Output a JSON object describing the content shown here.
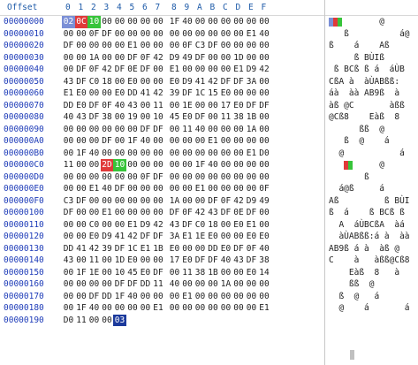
{
  "header": {
    "offset_label": "Offset",
    "columns": [
      "0",
      "1",
      "2",
      "3",
      "4",
      "5",
      "6",
      "7",
      "8",
      "9",
      "A",
      "B",
      "C",
      "D",
      "E",
      "F"
    ]
  },
  "colors": {
    "offset_text": "#1d3bb8",
    "header_text": "#1d5aa8",
    "sel1": "#7b8fd6",
    "sel2": "#e03a3a",
    "sel3": "#37c43a",
    "cursor": "#1c3a9c"
  },
  "rows": [
    {
      "offset": "00000000",
      "bytes": [
        "02",
        "0C",
        "10",
        "00",
        "00",
        "00",
        "00",
        "00",
        "1F",
        "40",
        "00",
        "00",
        "00",
        "00",
        "00",
        "00"
      ],
      "ascii": "          @    "
    },
    {
      "offset": "00000010",
      "bytes": [
        "00",
        "00",
        "0F",
        "DF",
        "00",
        "00",
        "00",
        "00",
        "00",
        "00",
        "00",
        "00",
        "00",
        "00",
        "E1",
        "40"
      ],
      "ascii": "   ß          á@"
    },
    {
      "offset": "00000020",
      "bytes": [
        "DF",
        "00",
        "00",
        "00",
        "00",
        "E1",
        "00",
        "00",
        "00",
        "0F",
        "C3",
        "DF",
        "00",
        "00",
        "00",
        "00"
      ],
      "ascii": "ß    á    Aß    "
    },
    {
      "offset": "00000030",
      "bytes": [
        "00",
        "00",
        "1A",
        "00",
        "00",
        "DF",
        "0F",
        "42",
        "D9",
        "49",
        "DF",
        "00",
        "00",
        "1D",
        "00",
        "00"
      ],
      "ascii": "     ß BÙIß      "
    },
    {
      "offset": "00000040",
      "bytes": [
        "00",
        "DF",
        "0F",
        "42",
        "DF",
        "0E",
        "DF",
        "00",
        "E1",
        "00",
        "00",
        "00",
        "00",
        "E1",
        "D9",
        "42"
      ],
      "ascii": " ß BCß ß á  áÙB"
    },
    {
      "offset": "00000050",
      "bytes": [
        "43",
        "DF",
        "C0",
        "18",
        "00",
        "E0",
        "00",
        "00",
        "E0",
        "D9",
        "41",
        "42",
        "DF",
        "DF",
        "3A",
        "00"
      ],
      "ascii": "CßA à  àÙABßß:"
    },
    {
      "offset": "00000060",
      "bytes": [
        "E1",
        "E0",
        "00",
        "00",
        "E0",
        "DD",
        "41",
        "42",
        "39",
        "DF",
        "1C",
        "15",
        "E0",
        "00",
        "00",
        "00"
      ],
      "ascii": "áà  àà AB9ß  à"
    },
    {
      "offset": "00000070",
      "bytes": [
        "DD",
        "E0",
        "DF",
        "0F",
        "40",
        "43",
        "00",
        "11",
        "00",
        "1E",
        "00",
        "00",
        "17",
        "E0",
        "DF",
        "DF"
      ],
      "ascii": "àß @C       àßß"
    },
    {
      "offset": "00000080",
      "bytes": [
        "40",
        "43",
        "DF",
        "38",
        "00",
        "19",
        "00",
        "10",
        "45",
        "E0",
        "DF",
        "00",
        "11",
        "38",
        "1B",
        "00"
      ],
      "ascii": "@Cß8    Eàß  8"
    },
    {
      "offset": "00000090",
      "bytes": [
        "00",
        "00",
        "00",
        "00",
        "00",
        "00",
        "DF",
        "DF",
        "00",
        "11",
        "40",
        "00",
        "00",
        "00",
        "1A",
        "00"
      ],
      "ascii": "      ßß  @     "
    },
    {
      "offset": "000000A0",
      "bytes": [
        "00",
        "00",
        "00",
        "DF",
        "00",
        "1F",
        "40",
        "00",
        "00",
        "00",
        "00",
        "E1",
        "00",
        "00",
        "00",
        "00"
      ],
      "ascii": "   ß  @    á    "
    },
    {
      "offset": "000000B0",
      "bytes": [
        "00",
        "1F",
        "40",
        "00",
        "00",
        "00",
        "00",
        "00",
        "00",
        "00",
        "00",
        "00",
        "00",
        "00",
        "E1",
        "D0"
      ],
      "ascii": "  @           á"
    },
    {
      "offset": "000000C0",
      "bytes": [
        "11",
        "00",
        "00",
        "2D",
        "10",
        "00",
        "00",
        "00",
        "00",
        "00",
        "1F",
        "40",
        "00",
        "00",
        "00",
        "00"
      ],
      "ascii": "          @     "
    },
    {
      "offset": "000000D0",
      "bytes": [
        "00",
        "00",
        "00",
        "00",
        "00",
        "00",
        "0F",
        "DF",
        "00",
        "00",
        "00",
        "00",
        "00",
        "00",
        "00",
        "00"
      ],
      "ascii": "       ß        "
    },
    {
      "offset": "000000E0",
      "bytes": [
        "00",
        "00",
        "E1",
        "40",
        "DF",
        "00",
        "00",
        "00",
        "00",
        "00",
        "E1",
        "00",
        "00",
        "00",
        "00",
        "0F"
      ],
      "ascii": "  á@ß     á     "
    },
    {
      "offset": "000000F0",
      "bytes": [
        "C3",
        "DF",
        "00",
        "00",
        "00",
        "00",
        "00",
        "00",
        "1A",
        "00",
        "00",
        "DF",
        "0F",
        "42",
        "D9",
        "49"
      ],
      "ascii": "Aß         ß BÙI"
    },
    {
      "offset": "00000100",
      "bytes": [
        "DF",
        "00",
        "00",
        "E1",
        "00",
        "00",
        "00",
        "00",
        "DF",
        "0F",
        "42",
        "43",
        "DF",
        "0E",
        "DF",
        "00"
      ],
      "ascii": "ß  á    ß BCß ß"
    },
    {
      "offset": "00000110",
      "bytes": [
        "00",
        "00",
        "C0",
        "00",
        "00",
        "E1",
        "D9",
        "42",
        "43",
        "DF",
        "C0",
        "18",
        "00",
        "E0",
        "E1",
        "00"
      ],
      "ascii": "  A  áÙBCßA  àá"
    },
    {
      "offset": "00000120",
      "bytes": [
        "00",
        "00",
        "E0",
        "D9",
        "41",
        "42",
        "DF",
        "DF",
        "3A",
        "E1",
        "1E",
        "E0",
        "00",
        "00",
        "E0",
        "E0"
      ],
      "ascii": "  àÙABßß:á à  àà"
    },
    {
      "offset": "00000130",
      "bytes": [
        "DD",
        "41",
        "42",
        "39",
        "DF",
        "1C",
        "E1",
        "1B",
        "E0",
        "00",
        "00",
        "DD",
        "E0",
        "DF",
        "0F",
        "40"
      ],
      "ascii": "AB9ß á à  àß @"
    },
    {
      "offset": "00000140",
      "bytes": [
        "43",
        "00",
        "11",
        "00",
        "1D",
        "E0",
        "00",
        "00",
        "17",
        "E0",
        "DF",
        "DF",
        "40",
        "43",
        "DF",
        "38"
      ],
      "ascii": "C    à   àßß@Cß8"
    },
    {
      "offset": "00000150",
      "bytes": [
        "00",
        "1F",
        "1E",
        "00",
        "10",
        "45",
        "E0",
        "DF",
        "00",
        "11",
        "38",
        "1B",
        "00",
        "00",
        "E0",
        "14"
      ],
      "ascii": "    Eàß  8   à"
    },
    {
      "offset": "00000160",
      "bytes": [
        "00",
        "00",
        "00",
        "00",
        "DF",
        "DF",
        "DD",
        "11",
        "40",
        "00",
        "00",
        "00",
        "1A",
        "00",
        "00",
        "00"
      ],
      "ascii": "    ßß  @       "
    },
    {
      "offset": "00000170",
      "bytes": [
        "00",
        "00",
        "DF",
        "DD",
        "1F",
        "40",
        "00",
        "00",
        "00",
        "E1",
        "00",
        "00",
        "00",
        "00",
        "00",
        "00"
      ],
      "ascii": "  ß  @   á      "
    },
    {
      "offset": "00000180",
      "bytes": [
        "00",
        "1F",
        "40",
        "00",
        "00",
        "00",
        "00",
        "E1",
        "00",
        "00",
        "00",
        "00",
        "00",
        "00",
        "00",
        "E1"
      ],
      "ascii": "  @    á       á"
    },
    {
      "offset": "00000190",
      "bytes": [
        "D0",
        "11",
        "00",
        "00",
        "03"
      ],
      "ascii": ""
    }
  ]
}
